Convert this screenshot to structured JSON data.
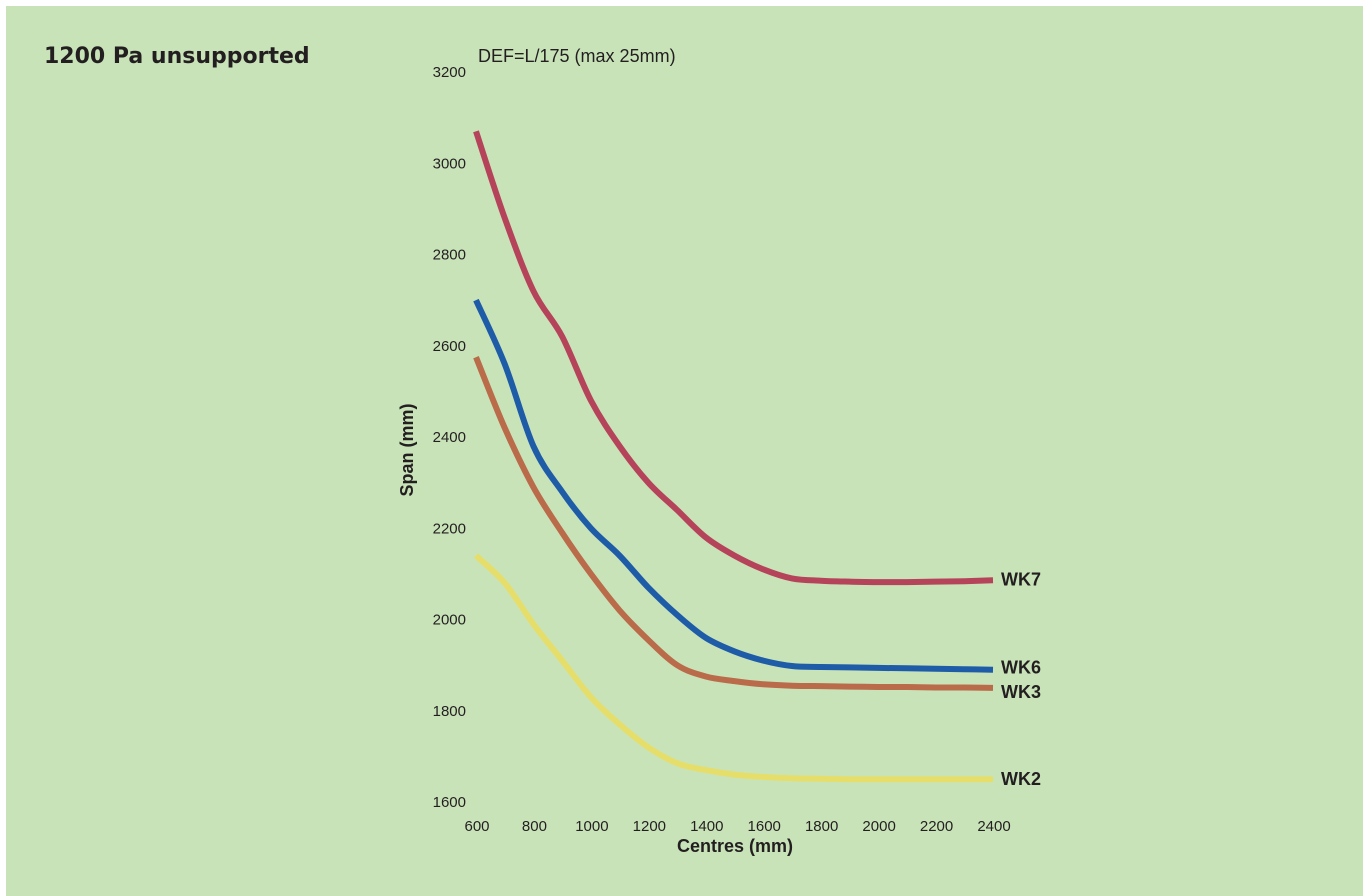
{
  "page": {
    "title": "1200 Pa unsupported"
  },
  "chart_data": {
    "type": "line",
    "title": "1200 Pa unsupported",
    "subtitle": "DEF=L/175 (max 25mm)",
    "xlabel": "Centres (mm)",
    "ylabel": "Span (mm)",
    "xlim": [
      600,
      2400
    ],
    "ylim": [
      1600,
      3200
    ],
    "xticks": [
      600,
      800,
      1000,
      1200,
      1400,
      1600,
      1800,
      2000,
      2200,
      2400
    ],
    "yticks": [
      1600,
      1800,
      2000,
      2200,
      2400,
      2600,
      2800,
      3000,
      3200
    ],
    "grid": false,
    "series": [
      {
        "name": "WK7",
        "color": "#b5435a",
        "x": [
          600,
          700,
          800,
          900,
          1000,
          1100,
          1200,
          1300,
          1400,
          1500,
          1600,
          1700,
          1800,
          1900,
          2000,
          2100,
          2200,
          2300,
          2400
        ],
        "y": [
          3070,
          2880,
          2720,
          2620,
          2480,
          2380,
          2300,
          2240,
          2180,
          2140,
          2110,
          2090,
          2085,
          2083,
          2082,
          2082,
          2083,
          2084,
          2086
        ]
      },
      {
        "name": "WK6",
        "color": "#1e5ca8",
        "x": [
          600,
          700,
          800,
          900,
          1000,
          1100,
          1200,
          1300,
          1400,
          1500,
          1600,
          1700,
          1800,
          1900,
          2000,
          2100,
          2200,
          2300,
          2400
        ],
        "y": [
          2700,
          2560,
          2380,
          2280,
          2200,
          2140,
          2070,
          2010,
          1960,
          1930,
          1910,
          1898,
          1896,
          1895,
          1894,
          1893,
          1892,
          1891,
          1890
        ]
      },
      {
        "name": "WK3",
        "color": "#b96b4a",
        "x": [
          600,
          700,
          800,
          900,
          1000,
          1100,
          1200,
          1300,
          1400,
          1500,
          1600,
          1700,
          1800,
          1900,
          2000,
          2100,
          2200,
          2300,
          2400
        ],
        "y": [
          2575,
          2420,
          2290,
          2190,
          2100,
          2020,
          1955,
          1900,
          1875,
          1865,
          1858,
          1855,
          1854,
          1853,
          1852,
          1852,
          1851,
          1851,
          1850
        ]
      },
      {
        "name": "WK2",
        "color": "#e6de6a",
        "x": [
          600,
          700,
          800,
          900,
          1000,
          1100,
          1200,
          1300,
          1400,
          1500,
          1600,
          1700,
          1800,
          1900,
          2000,
          2100,
          2200,
          2300,
          2400
        ],
        "y": [
          2140,
          2080,
          1990,
          1910,
          1830,
          1770,
          1720,
          1685,
          1670,
          1660,
          1655,
          1652,
          1651,
          1650,
          1650,
          1650,
          1650,
          1650,
          1650
        ]
      }
    ]
  }
}
